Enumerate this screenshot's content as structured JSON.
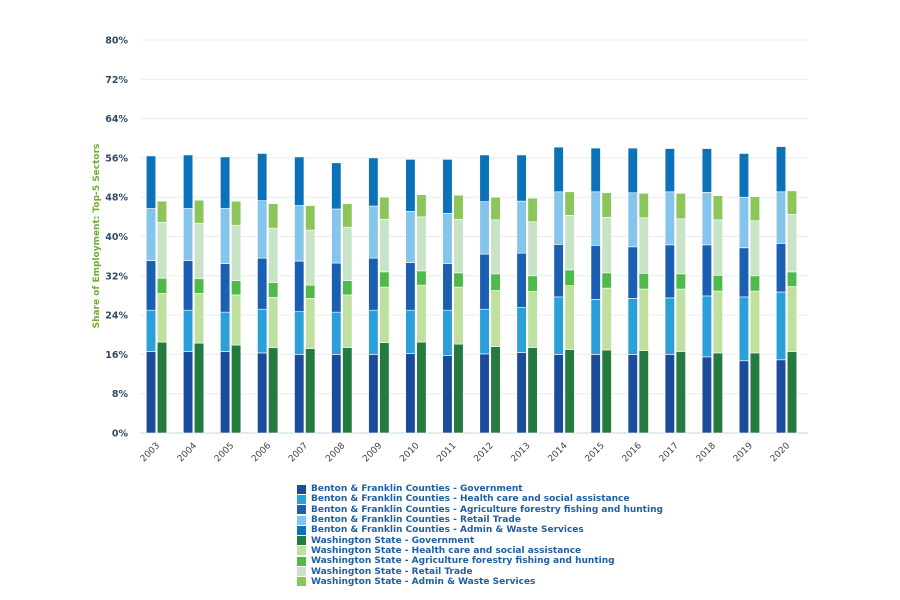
{
  "chart_data": {
    "type": "bar",
    "stacked": true,
    "title": "",
    "xlabel": "",
    "ylabel": "Share of Employment: Top-5 Sectors",
    "ylim": [
      0,
      80
    ],
    "yticks": [
      "0%",
      "8%",
      "16%",
      "24%",
      "32%",
      "40%",
      "48%",
      "56%",
      "64%",
      "72%",
      "80%"
    ],
    "grid": true,
    "legend_position": "bottom",
    "categories": [
      "2003",
      "2004",
      "2005",
      "2006",
      "2007",
      "2008",
      "2009",
      "2010",
      "2011",
      "2012",
      "2013",
      "2014",
      "2015",
      "2016",
      "2017",
      "2018",
      "2019",
      "2020"
    ],
    "groups": [
      {
        "name": "Benton & Franklin Counties",
        "series": [
          {
            "name": "Benton & Franklin Counties - Government",
            "color": "#1b4c9c",
            "values": [
              16.6,
              16.6,
              16.6,
              16.3,
              16.0,
              16.0,
              16.0,
              16.2,
              15.8,
              16.1,
              16.4,
              16.0,
              16.0,
              16.0,
              16.0,
              15.5,
              14.7,
              14.9
            ]
          },
          {
            "name": "Benton & Franklin Counties - Health care and social assistance",
            "color": "#2b9fd8",
            "values": [
              8.4,
              8.4,
              8.0,
              8.9,
              8.7,
              8.6,
              9.0,
              8.8,
              9.2,
              9.1,
              9.2,
              11.7,
              11.2,
              11.4,
              11.5,
              12.4,
              13.0,
              13.8
            ]
          },
          {
            "name": "Benton & Franklin Counties - Agriculture forestry fishing and hunting",
            "color": "#1a5fb1",
            "values": [
              10.1,
              10.1,
              9.9,
              10.4,
              10.3,
              10.0,
              10.6,
              9.7,
              9.5,
              11.2,
              11.0,
              10.7,
              11.0,
              10.5,
              10.8,
              10.4,
              10.0,
              9.9
            ]
          },
          {
            "name": "Benton & Franklin Counties - Retail Trade",
            "color": "#86c5eb",
            "values": [
              10.6,
              10.6,
              11.2,
              11.7,
              11.3,
              11.0,
              10.6,
              10.4,
              10.2,
              10.7,
              10.6,
              10.7,
              10.9,
              11.0,
              10.8,
              10.7,
              10.3,
              10.5
            ]
          },
          {
            "name": "Benton & Franklin Counties - Admin & Waste Services",
            "color": "#0b72b9",
            "values": [
              10.7,
              10.9,
              10.5,
              9.6,
              9.9,
              9.4,
              9.8,
              10.6,
              11.0,
              9.5,
              9.4,
              9.1,
              8.9,
              9.1,
              8.8,
              8.9,
              8.9,
              9.2
            ]
          }
        ]
      },
      {
        "name": "Washington State",
        "series": [
          {
            "name": "Washington State - Government",
            "color": "#247a3f",
            "values": [
              18.5,
              18.3,
              17.9,
              17.4,
              17.2,
              17.4,
              18.4,
              18.5,
              18.1,
              17.6,
              17.4,
              17.0,
              16.9,
              16.8,
              16.6,
              16.3,
              16.3,
              16.6
            ]
          },
          {
            "name": "Washington State - Health care and social assistance",
            "color": "#c0e0a0",
            "values": [
              9.9,
              10.1,
              10.2,
              10.2,
              10.2,
              10.7,
              11.3,
              11.6,
              11.6,
              11.4,
              11.4,
              13.0,
              12.6,
              12.5,
              12.7,
              12.6,
              12.6,
              13.2
            ]
          },
          {
            "name": "Washington State - Agriculture forestry fishing and hunting",
            "color": "#4fb94a",
            "values": [
              3.1,
              3.0,
              2.9,
              3.0,
              2.7,
              2.9,
              3.1,
              2.9,
              2.9,
              3.4,
              3.2,
              3.2,
              3.1,
              3.2,
              3.1,
              3.2,
              3.1,
              3.0
            ]
          },
          {
            "name": "Washington State - Retail Trade",
            "color": "#c8e3c6",
            "values": [
              11.4,
              11.3,
              11.3,
              11.1,
              11.2,
              10.9,
              10.7,
              11.0,
              10.9,
              11.0,
              11.0,
              11.1,
              11.3,
              11.3,
              11.2,
              11.3,
              11.2,
              11.7
            ]
          },
          {
            "name": "Washington State - Admin & Waste Services",
            "color": "#8cc65b",
            "values": [
              4.3,
              4.7,
              4.9,
              5.0,
              5.0,
              4.8,
              4.5,
              4.5,
              4.9,
              4.6,
              4.8,
              4.8,
              5.0,
              5.0,
              5.2,
              4.9,
              4.9,
              4.8
            ]
          }
        ]
      }
    ]
  }
}
